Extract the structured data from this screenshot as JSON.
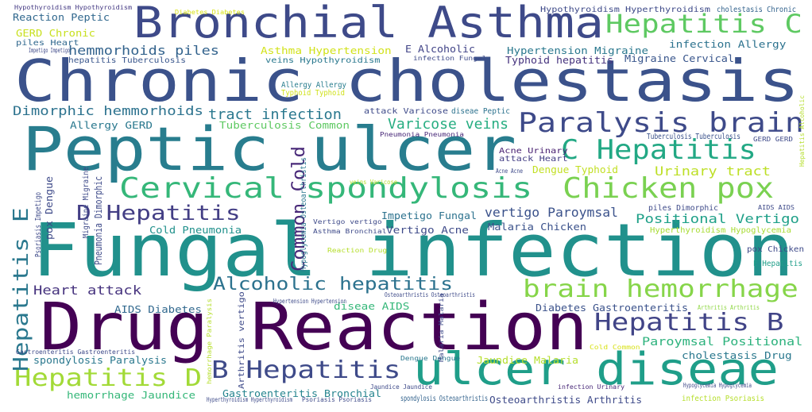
{
  "palette": {
    "dark_purple": "#440154",
    "indigo": "#3e4a89",
    "blue": "#31688e",
    "teal": "#26828e",
    "sea": "#1f9e89",
    "green": "#35b779",
    "lime": "#6ece58",
    "chartreuse": "#b5de2b",
    "yellow": "#fde725"
  },
  "words": [
    {
      "text": "Fungal infection",
      "color": "#21918c"
    },
    {
      "text": "Chronic cholestasis",
      "color": "#3b528b"
    },
    {
      "text": "Drug Reaction",
      "color": "#440154"
    },
    {
      "text": "Peptic ulcer",
      "color": "#287d8e"
    },
    {
      "text": "Bronchial Asthma",
      "color": "#3e4a89"
    },
    {
      "text": "ulcer diseae",
      "color": "#1f9e89"
    },
    {
      "text": "Cervical spondylosis",
      "color": "#35b779"
    },
    {
      "text": "Chicken pox",
      "color": "#7ad151"
    },
    {
      "text": "Hepatitis C",
      "color": "#5ec962"
    },
    {
      "text": "Paralysis brain",
      "color": "#3e4a89"
    },
    {
      "text": "C Hepatitis",
      "color": "#22a884"
    },
    {
      "text": "Hepatitis B",
      "color": "#414487"
    },
    {
      "text": "brain hemorrhage",
      "color": "#86d549"
    },
    {
      "text": "Hepatitis D",
      "color": "#a2da37"
    },
    {
      "text": "B Hepatitis",
      "color": "#3e4a89"
    },
    {
      "text": "D Hepatitis",
      "color": "#433e85"
    },
    {
      "text": "Alcoholic hepatitis",
      "color": "#2c728e"
    },
    {
      "text": "Hepatitis E",
      "color": "#2a788e"
    },
    {
      "text": "Common Cold",
      "color": "#482878"
    },
    {
      "text": "Varicose veins",
      "color": "#26ad81"
    },
    {
      "text": "tract infection",
      "color": "#2a788e"
    },
    {
      "text": "Dimorphic hemmorhoids",
      "color": "#2c728e"
    },
    {
      "text": "vertigo Paroymsal",
      "color": "#3b528b"
    },
    {
      "text": "Positional Vertigo",
      "color": "#1fa088"
    },
    {
      "text": "Urinary tract",
      "color": "#bddf26"
    },
    {
      "text": "hemmorhoids piles",
      "color": "#33638d"
    },
    {
      "text": "Heart attack",
      "color": "#46337e"
    },
    {
      "text": "Paroymsal Positional",
      "color": "#2db27d"
    },
    {
      "text": "Reaction Peptic",
      "color": "#31688e"
    },
    {
      "text": "Asthma Hypertension",
      "color": "#d2e21b"
    },
    {
      "text": "Hypertension Migraine",
      "color": "#2a788e"
    },
    {
      "text": "Migraine Cervical",
      "color": "#39568c"
    },
    {
      "text": "infection Allergy",
      "color": "#2c728e"
    },
    {
      "text": "Typhoid hepatitis",
      "color": "#46337e"
    },
    {
      "text": "Tuberculosis Common",
      "color": "#5ec962"
    },
    {
      "text": "Allergy GERD",
      "color": "#2a788e"
    },
    {
      "text": "Dengue Typhoid",
      "color": "#c2df23"
    },
    {
      "text": "Acne Urinary",
      "color": "#482071"
    },
    {
      "text": "attack Heart",
      "color": "#433e85"
    },
    {
      "text": "cholestasis Drug",
      "color": "#2a788e"
    },
    {
      "text": "Hyperthyroidism Hypoglycemia",
      "color": "#a8db34"
    },
    {
      "text": "Diabetes Gastroenteritis",
      "color": "#3b528b"
    },
    {
      "text": "AIDS Diabetes",
      "color": "#31688e"
    },
    {
      "text": "diseae AIDS",
      "color": "#35b779"
    },
    {
      "text": "Gastroenteritis Bronchial",
      "color": "#25848e"
    },
    {
      "text": "hemorrhage Jaundice",
      "color": "#35b779"
    },
    {
      "text": "spondylosis Paralysis",
      "color": "#2a788e"
    },
    {
      "text": "Jaundice Malaria",
      "color": "#b5de2b"
    },
    {
      "text": "Malaria Chicken",
      "color": "#3b528b"
    },
    {
      "text": "Impetigo Fungal",
      "color": "#2c728e"
    },
    {
      "text": "Vertigo Acne",
      "color": "#3e4a89"
    },
    {
      "text": "Cold Pneumonia",
      "color": "#21918c"
    },
    {
      "text": "Osteoarthristis Arthritis",
      "color": "#3e4a89"
    },
    {
      "text": "spondylosis Osteoarthristis",
      "color": "#33638d"
    },
    {
      "text": "GERD Chronic",
      "color": "#c8e020"
    },
    {
      "text": "piles Heart",
      "color": "#31688e"
    },
    {
      "text": "hepatitis Tuberculosis",
      "color": "#39568c"
    },
    {
      "text": "veins Hypothyroidism",
      "color": "#2a788e"
    },
    {
      "text": "Hypothyroidism Hyperthyroidism",
      "color": "#3e4a89"
    },
    {
      "text": "cholestasis Chronic",
      "color": "#33638d"
    },
    {
      "text": "Hypothyroidism Hypothyroidism",
      "color": "#443983"
    },
    {
      "text": "Diabetes Diabetes",
      "color": "#d8e219"
    },
    {
      "text": "E Alcoholic",
      "color": "#414487"
    },
    {
      "text": "infection Fungal",
      "color": "#3e4a89"
    },
    {
      "text": "Allergy Allergy",
      "color": "#287d8e"
    },
    {
      "text": "Typhoid Typhoid",
      "color": "#d0e11c"
    },
    {
      "text": "attack Varicose",
      "color": "#3e4a89"
    },
    {
      "text": "diseae Peptic",
      "color": "#2c728e"
    },
    {
      "text": "Pneumonia Pneumonia",
      "color": "#482878"
    },
    {
      "text": "Tuberculosis Tuberculosis",
      "color": "#3b528b"
    },
    {
      "text": "GERD GERD",
      "color": "#3e4a89"
    },
    {
      "text": "Hypertension Hypertension",
      "color": "#3e4a89"
    },
    {
      "text": "Asthma Bronchial",
      "color": "#3e4a89"
    },
    {
      "text": "Dengue Dengue",
      "color": "#2a788e"
    },
    {
      "text": "infection Urinary",
      "color": "#482878"
    },
    {
      "text": "infection Psoriasis",
      "color": "#b5de2b"
    },
    {
      "text": "Psoriasis Psoriasis",
      "color": "#3e4a89"
    },
    {
      "text": "Hyperthyroidism Hyperthyroidism",
      "color": "#3e4a89"
    },
    {
      "text": "pox Chicken",
      "color": "#3e4a89"
    },
    {
      "text": "E Hepatitis",
      "color": "#1f9e89"
    },
    {
      "text": "AIDS AIDS",
      "color": "#3e4a89"
    },
    {
      "text": "piles Dimorphic",
      "color": "#3e4a89"
    },
    {
      "text": "Hypoglycemia Hypoglycemia",
      "color": "#3e4a89"
    },
    {
      "text": "Arthritis Arthritis",
      "color": "#8fd744"
    },
    {
      "text": "Cold Common",
      "color": "#d8e219"
    },
    {
      "text": "Reaction Drug",
      "color": "#b5de2b"
    },
    {
      "text": "Vertigo vertigo",
      "color": "#3e4a89"
    },
    {
      "text": "Osteoarthristis Osteoarthristis",
      "color": "#3e4a89"
    },
    {
      "text": "veins Varicose",
      "color": "#b5de2b"
    },
    {
      "text": "Acne Acne",
      "color": "#3e4a89"
    },
    {
      "text": "Impetigo Impetigo",
      "color": "#3e4a89"
    },
    {
      "text": "Jaundice Jaundice",
      "color": "#3e4a89"
    },
    {
      "text": "Gastroenteritis Gastroenteritis",
      "color": "#3e4a89"
    },
    {
      "text": "pox Dengue",
      "color": "#3e4a89"
    },
    {
      "text": "Psoriasis Impetigo",
      "color": "#3e4a89"
    },
    {
      "text": "Migraine Migraine",
      "color": "#3e4a89"
    },
    {
      "text": "Pneumonia Dimorphic",
      "color": "#3e4a89"
    },
    {
      "text": "Hypoglycemia Osteoarthristis",
      "color": "#2a788e"
    },
    {
      "text": "Arthritis vertigo",
      "color": "#3e4a89"
    },
    {
      "text": "Malaria Malaria",
      "color": "#3e4a89"
    },
    {
      "text": "Hepatitis Alcoholic",
      "color": "#b5de2b"
    },
    {
      "text": "hemorrhage Paralysis",
      "color": "#b5de2b"
    }
  ]
}
